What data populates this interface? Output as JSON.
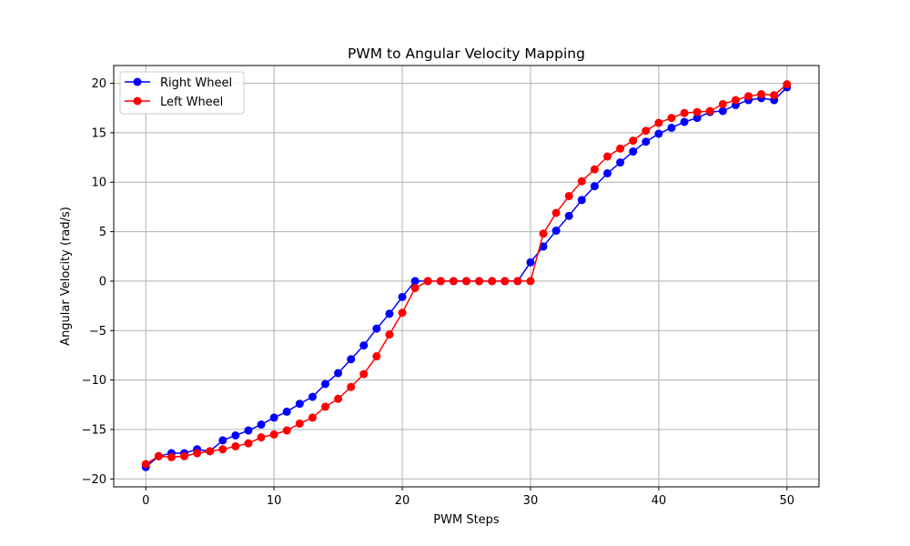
{
  "chart_data": {
    "type": "line",
    "title": "PWM to Angular Velocity Mapping",
    "xlabel": "PWM Steps",
    "ylabel": "Angular Velocity (rad/s)",
    "xlim": [
      -2.5,
      52.5
    ],
    "ylim": [
      -20.8,
      21.8
    ],
    "xticks": [
      0,
      10,
      20,
      30,
      40,
      50
    ],
    "yticks": [
      -20,
      -15,
      -10,
      -5,
      0,
      5,
      10,
      15,
      20
    ],
    "ytick_labels": [
      "−20",
      "−15",
      "−10",
      "−5",
      "0",
      "5",
      "10",
      "15",
      "20"
    ],
    "grid": true,
    "legend_position": "top-left",
    "x": [
      0,
      1,
      2,
      3,
      4,
      5,
      6,
      7,
      8,
      9,
      10,
      11,
      12,
      13,
      14,
      15,
      16,
      17,
      18,
      19,
      20,
      21,
      22,
      23,
      24,
      25,
      26,
      27,
      28,
      29,
      30,
      31,
      32,
      33,
      34,
      35,
      36,
      37,
      38,
      39,
      40,
      41,
      42,
      43,
      44,
      45,
      46,
      47,
      48,
      49,
      50
    ],
    "series": [
      {
        "name": "Right Wheel",
        "color": "#0000ff",
        "values": [
          -18.8,
          -17.7,
          -17.4,
          -17.4,
          -17.0,
          -17.2,
          -16.1,
          -15.6,
          -15.1,
          -14.5,
          -13.8,
          -13.2,
          -12.4,
          -11.7,
          -10.4,
          -9.3,
          -7.9,
          -6.5,
          -4.8,
          -3.3,
          -1.6,
          0.0,
          0.0,
          0.0,
          0.0,
          0.0,
          0.0,
          0.0,
          0.0,
          0.0,
          1.9,
          3.5,
          5.1,
          6.6,
          8.2,
          9.6,
          10.9,
          12.0,
          13.1,
          14.1,
          14.9,
          15.5,
          16.1,
          16.5,
          17.1,
          17.2,
          17.8,
          18.3,
          18.5,
          18.3,
          19.6
        ]
      },
      {
        "name": "Left Wheel",
        "color": "#ff0000",
        "values": [
          -18.5,
          -17.7,
          -17.8,
          -17.7,
          -17.4,
          -17.2,
          -17.0,
          -16.7,
          -16.4,
          -15.8,
          -15.5,
          -15.1,
          -14.4,
          -13.8,
          -12.7,
          -11.9,
          -10.7,
          -9.4,
          -7.6,
          -5.4,
          -3.2,
          -0.7,
          0.0,
          0.0,
          0.0,
          0.0,
          0.0,
          0.0,
          0.0,
          0.0,
          0.0,
          4.8,
          6.9,
          8.6,
          10.1,
          11.3,
          12.6,
          13.4,
          14.2,
          15.2,
          16.0,
          16.5,
          17.0,
          17.1,
          17.2,
          17.9,
          18.3,
          18.7,
          18.9,
          18.8,
          19.9
        ]
      }
    ]
  }
}
